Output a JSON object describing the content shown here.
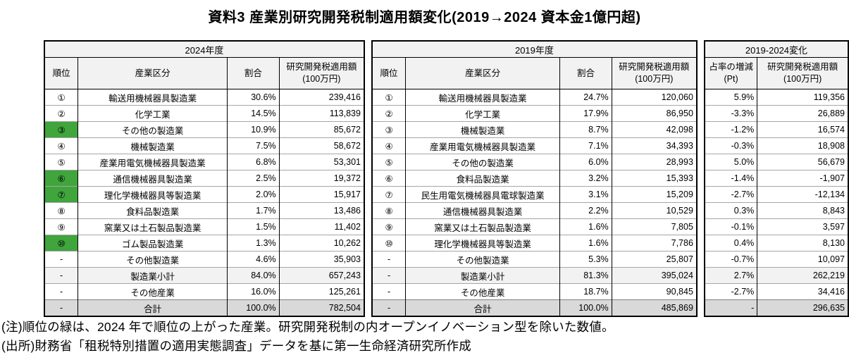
{
  "title": "資料3 産業別研究開発税制適用額変化(2019→2024 資本金1億円超)",
  "colors": {
    "rank_up_green": "#3fa53c",
    "header_bg": "#f2f2f2",
    "subtotal_bg": "#f2f2f2",
    "total_bg": "#d9d9d9"
  },
  "tables": [
    {
      "title": "2024年度",
      "headers": {
        "rank": "順位",
        "industry": "産業区分",
        "share": "割合",
        "amount_l1": "研究開発税適用額",
        "amount_l2": "(100万円)"
      },
      "rows": [
        {
          "rank": "①",
          "industry": "輸送用機械器具製造業",
          "share": "30.6%",
          "amount": "239,416",
          "green": false,
          "style": "normal"
        },
        {
          "rank": "②",
          "industry": "化学工業",
          "share": "14.5%",
          "amount": "113,839",
          "green": false,
          "style": "normal"
        },
        {
          "rank": "③",
          "industry": "その他の製造業",
          "share": "10.9%",
          "amount": "85,672",
          "green": true,
          "style": "normal"
        },
        {
          "rank": "④",
          "industry": "機械製造業",
          "share": "7.5%",
          "amount": "58,672",
          "green": false,
          "style": "normal"
        },
        {
          "rank": "⑤",
          "industry": "産業用電気機械器具製造業",
          "share": "6.8%",
          "amount": "53,301",
          "green": false,
          "style": "normal"
        },
        {
          "rank": "⑥",
          "industry": "通信機械器具製造業",
          "share": "2.5%",
          "amount": "19,372",
          "green": true,
          "style": "normal"
        },
        {
          "rank": "⑦",
          "industry": "理化学機械器具等製造業",
          "share": "2.0%",
          "amount": "15,917",
          "green": true,
          "style": "normal"
        },
        {
          "rank": "⑧",
          "industry": "食料品製造業",
          "share": "1.7%",
          "amount": "13,486",
          "green": false,
          "style": "normal"
        },
        {
          "rank": "⑨",
          "industry": "窯業又は土石製品製造業",
          "share": "1.5%",
          "amount": "11,402",
          "green": false,
          "style": "normal"
        },
        {
          "rank": "⑩",
          "industry": "ゴム製品製造業",
          "share": "1.3%",
          "amount": "10,262",
          "green": true,
          "style": "normal"
        },
        {
          "rank": "-",
          "industry": "その他製造業",
          "share": "4.6%",
          "amount": "35,903",
          "green": false,
          "style": "normal"
        },
        {
          "rank": "-",
          "industry": "製造業小計",
          "share": "84.0%",
          "amount": "657,243",
          "green": false,
          "style": "subtotal"
        },
        {
          "rank": "-",
          "industry": "その他産業",
          "share": "16.0%",
          "amount": "125,261",
          "green": false,
          "style": "normal"
        },
        {
          "rank": "-",
          "industry": "合計",
          "share": "100.0%",
          "amount": "782,504",
          "green": false,
          "style": "total"
        }
      ]
    },
    {
      "title": "2019年度",
      "headers": {
        "rank": "順位",
        "industry": "産業区分",
        "share": "割合",
        "amount_l1": "研究開発税適用額",
        "amount_l2": "(100万円)"
      },
      "rows": [
        {
          "rank": "①",
          "industry": "輸送用機械器具製造業",
          "share": "24.7%",
          "amount": "120,060",
          "green": false,
          "style": "normal"
        },
        {
          "rank": "②",
          "industry": "化学工業",
          "share": "17.9%",
          "amount": "86,950",
          "green": false,
          "style": "normal"
        },
        {
          "rank": "③",
          "industry": "機械製造業",
          "share": "8.7%",
          "amount": "42,098",
          "green": false,
          "style": "normal"
        },
        {
          "rank": "④",
          "industry": "産業用電気機械器具製造業",
          "share": "7.1%",
          "amount": "34,393",
          "green": false,
          "style": "normal"
        },
        {
          "rank": "⑤",
          "industry": "その他の製造業",
          "share": "6.0%",
          "amount": "28,993",
          "green": false,
          "style": "normal"
        },
        {
          "rank": "⑥",
          "industry": "食料品製造業",
          "share": "3.2%",
          "amount": "15,393",
          "green": false,
          "style": "normal"
        },
        {
          "rank": "⑦",
          "industry": "民生用電気機械器具電球製造業",
          "share": "3.1%",
          "amount": "15,209",
          "green": false,
          "style": "normal"
        },
        {
          "rank": "⑧",
          "industry": "通信機械器具製造業",
          "share": "2.2%",
          "amount": "10,529",
          "green": false,
          "style": "normal"
        },
        {
          "rank": "⑨",
          "industry": "窯業又は土石製品製造業",
          "share": "1.6%",
          "amount": "7,805",
          "green": false,
          "style": "normal"
        },
        {
          "rank": "⑩",
          "industry": "理化学機械器具等製造業",
          "share": "1.6%",
          "amount": "7,786",
          "green": false,
          "style": "normal"
        },
        {
          "rank": "-",
          "industry": "その他製造業",
          "share": "5.3%",
          "amount": "25,807",
          "green": false,
          "style": "normal"
        },
        {
          "rank": "-",
          "industry": "製造業小計",
          "share": "81.3%",
          "amount": "395,024",
          "green": false,
          "style": "subtotal"
        },
        {
          "rank": "-",
          "industry": "その他産業",
          "share": "18.7%",
          "amount": "90,845",
          "green": false,
          "style": "normal"
        },
        {
          "rank": "-",
          "industry": "合計",
          "share": "100.0%",
          "amount": "485,869",
          "green": false,
          "style": "total"
        }
      ]
    },
    {
      "title": "2019-2024変化",
      "headers": {
        "share_l1": "占率の増減",
        "share_l2": "(Pt)",
        "amount_l1": "研究開発税適用額",
        "amount_l2": "(100万円)"
      },
      "rows": [
        {
          "share": "5.9%",
          "amount": "119,356",
          "style": "normal"
        },
        {
          "share": "-3.3%",
          "amount": "26,889",
          "style": "normal"
        },
        {
          "share": "-1.2%",
          "amount": "16,574",
          "style": "normal"
        },
        {
          "share": "-0.3%",
          "amount": "18,908",
          "style": "normal"
        },
        {
          "share": "5.0%",
          "amount": "56,679",
          "style": "normal"
        },
        {
          "share": "-1.4%",
          "amount": "-1,907",
          "style": "normal"
        },
        {
          "share": "-2.7%",
          "amount": "-12,134",
          "style": "normal"
        },
        {
          "share": "0.3%",
          "amount": "8,843",
          "style": "normal"
        },
        {
          "share": "-0.1%",
          "amount": "3,597",
          "style": "normal"
        },
        {
          "share": "0.4%",
          "amount": "8,130",
          "style": "normal"
        },
        {
          "share": "-0.7%",
          "amount": "10,097",
          "style": "normal"
        },
        {
          "share": "2.7%",
          "amount": "262,219",
          "style": "subtotal"
        },
        {
          "share": "-2.7%",
          "amount": "34,416",
          "style": "normal"
        },
        {
          "share": "-",
          "amount": "296,635",
          "style": "total"
        }
      ]
    }
  ],
  "footnotes": {
    "note": "(注)順位の緑は、2024 年で順位の上がった産業。研究開発税制の内オープンイノベーション型を除いた数値。",
    "source": "(出所)財務省「租税特別措置の適用実態調査」データを基に第一生命経済研究所作成"
  }
}
